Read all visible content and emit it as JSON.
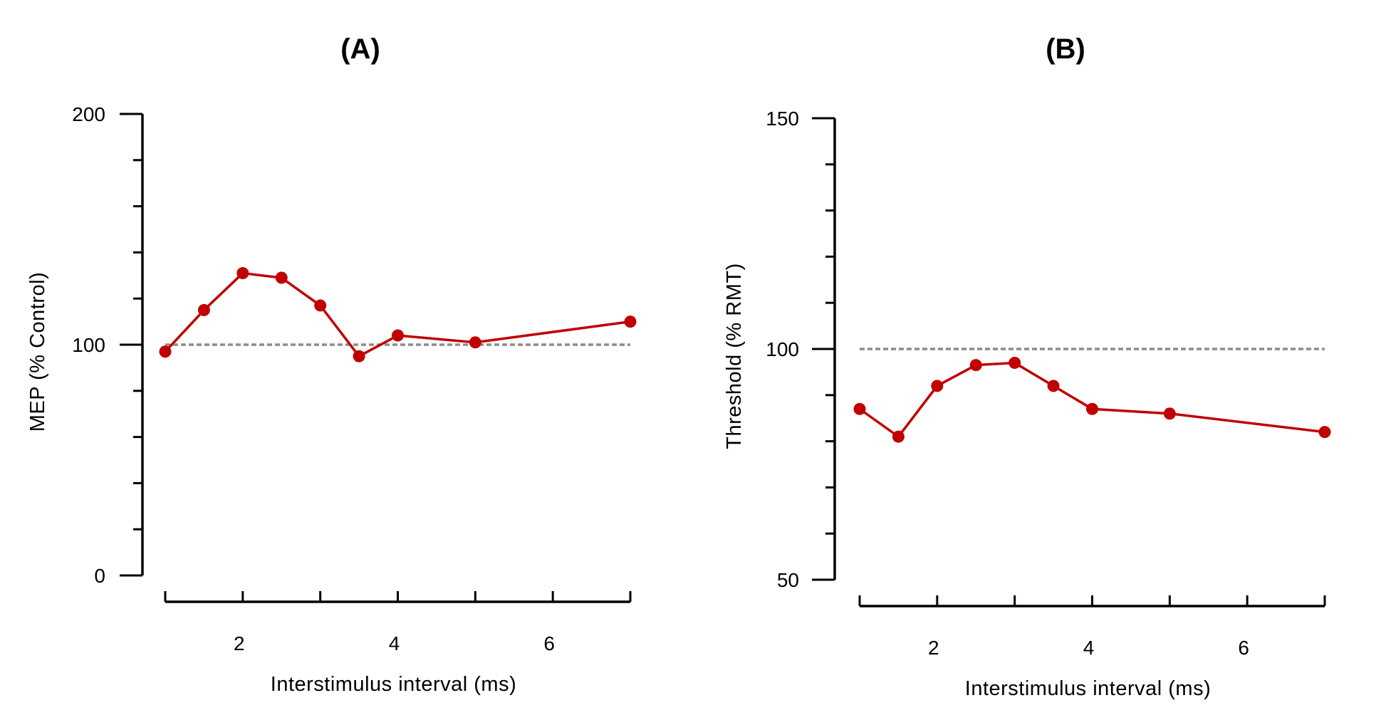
{
  "colors": {
    "series": "#c00000",
    "reference": "#8c8c8c",
    "axis": "#000000"
  },
  "chart_data": [
    {
      "id": "A",
      "type": "line",
      "title": "(A)",
      "xlabel": "Interstimulus interval (ms)",
      "ylabel": "MEP (% Control)",
      "xlim": [
        1,
        7
      ],
      "ylim": [
        0,
        200
      ],
      "xticks": [
        2,
        4,
        6
      ],
      "xminor_step": 1,
      "yticks": [
        0,
        100,
        200
      ],
      "yminor_step": 20,
      "reference_line": 100,
      "series": [
        {
          "name": "MEP",
          "x": [
            1,
            1.5,
            2,
            2.5,
            3,
            3.5,
            4,
            5,
            7
          ],
          "y": [
            97,
            115,
            131,
            129,
            117,
            95,
            104,
            101,
            110
          ]
        }
      ]
    },
    {
      "id": "B",
      "type": "line",
      "title": "(B)",
      "xlabel": "Interstimulus interval (ms)",
      "ylabel": "Threshold (% RMT)",
      "xlim": [
        1,
        7
      ],
      "ylim": [
        50,
        150
      ],
      "xticks": [
        2,
        4,
        6
      ],
      "xminor_step": 1,
      "yticks": [
        50,
        100,
        150
      ],
      "yminor_step": 10,
      "reference_line": 100,
      "series": [
        {
          "name": "Threshold",
          "x": [
            1,
            1.5,
            2,
            2.5,
            3,
            3.5,
            4,
            5,
            7
          ],
          "y": [
            87,
            81,
            92,
            96.5,
            97,
            92,
            87,
            86,
            82
          ]
        }
      ]
    }
  ]
}
